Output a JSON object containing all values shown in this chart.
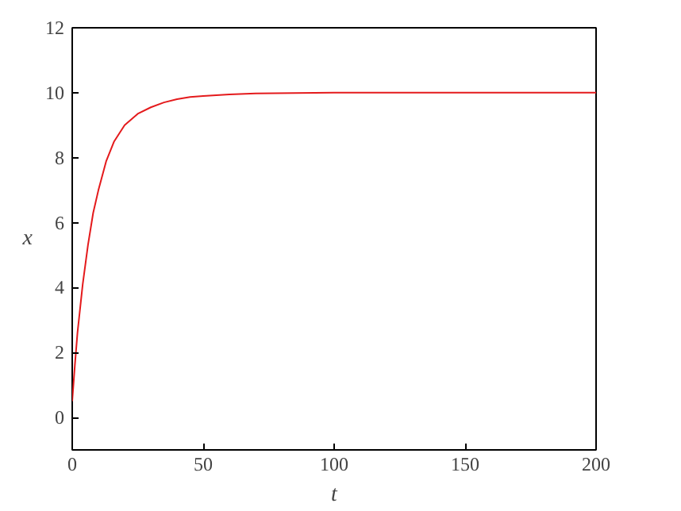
{
  "chart_data": {
    "type": "line",
    "xlabel": "t",
    "ylabel": "x",
    "x": [
      0,
      1,
      2,
      4,
      6,
      8,
      10,
      13,
      16,
      20,
      25,
      30,
      35,
      40,
      45,
      50,
      60,
      70,
      100,
      150,
      200
    ],
    "series": [
      {
        "color": "#e41a1c",
        "values": [
          0.5,
          1.6,
          2.6,
          4.1,
          5.3,
          6.3,
          7.0,
          7.9,
          8.5,
          9.0,
          9.35,
          9.55,
          9.7,
          9.8,
          9.87,
          9.9,
          9.95,
          9.98,
          10.0,
          10.0,
          10.0
        ]
      }
    ],
    "xlim": [
      0,
      200
    ],
    "ylim": [
      -1,
      12
    ],
    "xticks": [
      0,
      50,
      100,
      150,
      200
    ],
    "yticks": [
      0,
      2,
      4,
      6,
      8,
      10,
      12
    ],
    "grid": false,
    "marker": "none",
    "line_style": "solid"
  }
}
